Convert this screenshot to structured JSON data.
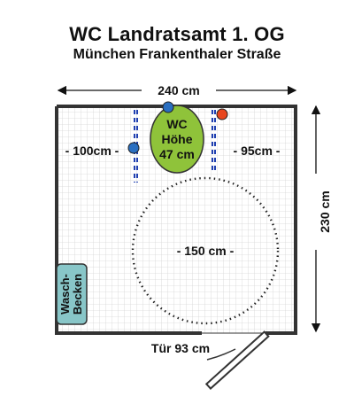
{
  "title": "WC Landratsamt 1. OG",
  "subtitle": "München Frankenthaler Straße",
  "dims": {
    "width": "240 cm",
    "height": "230 cm",
    "left_clearance": "- 100cm -",
    "right_clearance": "- 95cm -",
    "turning_circle": "- 150 cm -",
    "door": "Tür 93 cm"
  },
  "wc": {
    "line1": "WC",
    "line2": "Höhe",
    "line3": "47 cm",
    "color": "#8fc33a"
  },
  "sink": {
    "line1": "Wasch-",
    "line2": "Becken",
    "color": "#88c6c8"
  },
  "markers": {
    "blue": "#2a6fc1",
    "red": "#e8461e"
  },
  "colors": {
    "wall": "#333333",
    "tile_grid": "#d6d6d6",
    "dashes": "#1f3fb0"
  }
}
